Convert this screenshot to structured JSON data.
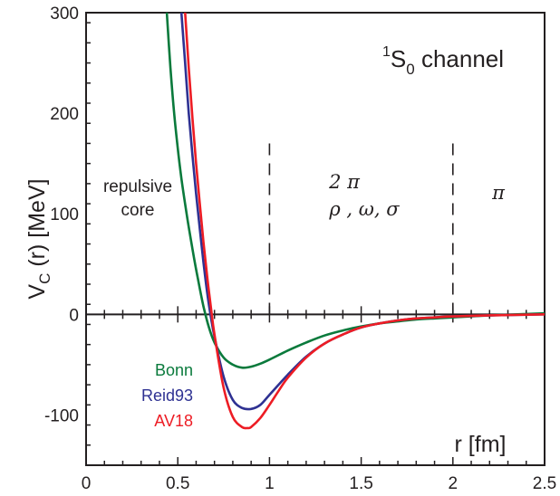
{
  "chart_data": {
    "type": "line",
    "title": "",
    "channel_label": {
      "prefix": "1",
      "main": "S",
      "sub": "0",
      "suffix": " channel"
    },
    "ylabel": {
      "main": "V",
      "sub": "C",
      "rest": " (r) [MeV]"
    },
    "xlabel": "r [fm]",
    "xlim": [
      0,
      2.5
    ],
    "ylim": [
      -150,
      300
    ],
    "xticks": [
      0,
      0.5,
      1,
      1.5,
      2,
      2.5
    ],
    "xtick_labels": [
      "0",
      "0.5",
      "1",
      "1.5",
      "2",
      "2.5"
    ],
    "yticks": [
      -100,
      0,
      100,
      200,
      300
    ],
    "ytick_labels": [
      "-100",
      "0",
      "100",
      "200",
      "300"
    ],
    "grid": false,
    "zero_line": true,
    "region_dividers": [
      1.0,
      2.0
    ],
    "regions": [
      {
        "lines": [
          "repulsive",
          "core"
        ]
      },
      {
        "lines": [
          "2 π",
          "ρ , ω,  σ"
        ]
      },
      {
        "lines": [
          "π"
        ]
      }
    ],
    "legend_placement": "lower-left",
    "series": [
      {
        "name": "Bonn",
        "color": "#0a7a3c",
        "x": [
          0.44,
          0.46,
          0.48,
          0.5,
          0.52,
          0.55,
          0.58,
          0.61,
          0.64,
          0.67,
          0.7,
          0.75,
          0.8,
          0.85,
          0.9,
          0.95,
          1.0,
          1.1,
          1.2,
          1.3,
          1.4,
          1.5,
          1.6,
          1.7,
          1.8,
          1.9,
          2.0,
          2.2,
          2.5
        ],
        "y": [
          300,
          245,
          200,
          165,
          135,
          98,
          65,
          35,
          8,
          -13,
          -28,
          -43,
          -50,
          -53,
          -52,
          -49,
          -45,
          -36,
          -28,
          -21,
          -16,
          -12,
          -9,
          -7,
          -5,
          -4,
          -3,
          -1,
          1
        ]
      },
      {
        "name": "Reid93",
        "color": "#2e3192",
        "x": [
          0.52,
          0.54,
          0.56,
          0.58,
          0.6,
          0.62,
          0.64,
          0.66,
          0.68,
          0.7,
          0.75,
          0.8,
          0.85,
          0.9,
          0.95,
          1.0,
          1.1,
          1.2,
          1.3,
          1.4,
          1.5,
          1.6,
          1.7,
          1.8,
          1.9,
          2.0,
          2.2,
          2.5
        ],
        "y": [
          300,
          250,
          200,
          158,
          120,
          85,
          52,
          22,
          -2,
          -22,
          -62,
          -85,
          -93,
          -94,
          -90,
          -80,
          -60,
          -42,
          -29,
          -20,
          -13,
          -9,
          -6,
          -4,
          -3,
          -2,
          -1,
          0
        ]
      },
      {
        "name": "AV18",
        "color": "#ed1c24",
        "x": [
          0.54,
          0.56,
          0.58,
          0.6,
          0.62,
          0.64,
          0.66,
          0.68,
          0.7,
          0.75,
          0.8,
          0.85,
          0.88,
          0.9,
          0.95,
          1.0,
          1.05,
          1.1,
          1.2,
          1.3,
          1.4,
          1.5,
          1.6,
          1.7,
          1.8,
          1.9,
          2.0,
          2.2,
          2.5
        ],
        "y": [
          300,
          245,
          195,
          150,
          110,
          72,
          38,
          8,
          -20,
          -73,
          -102,
          -112,
          -113,
          -112,
          -103,
          -90,
          -76,
          -63,
          -43,
          -29,
          -20,
          -13,
          -9,
          -6,
          -4,
          -3,
          -2,
          -1,
          0
        ]
      }
    ]
  }
}
